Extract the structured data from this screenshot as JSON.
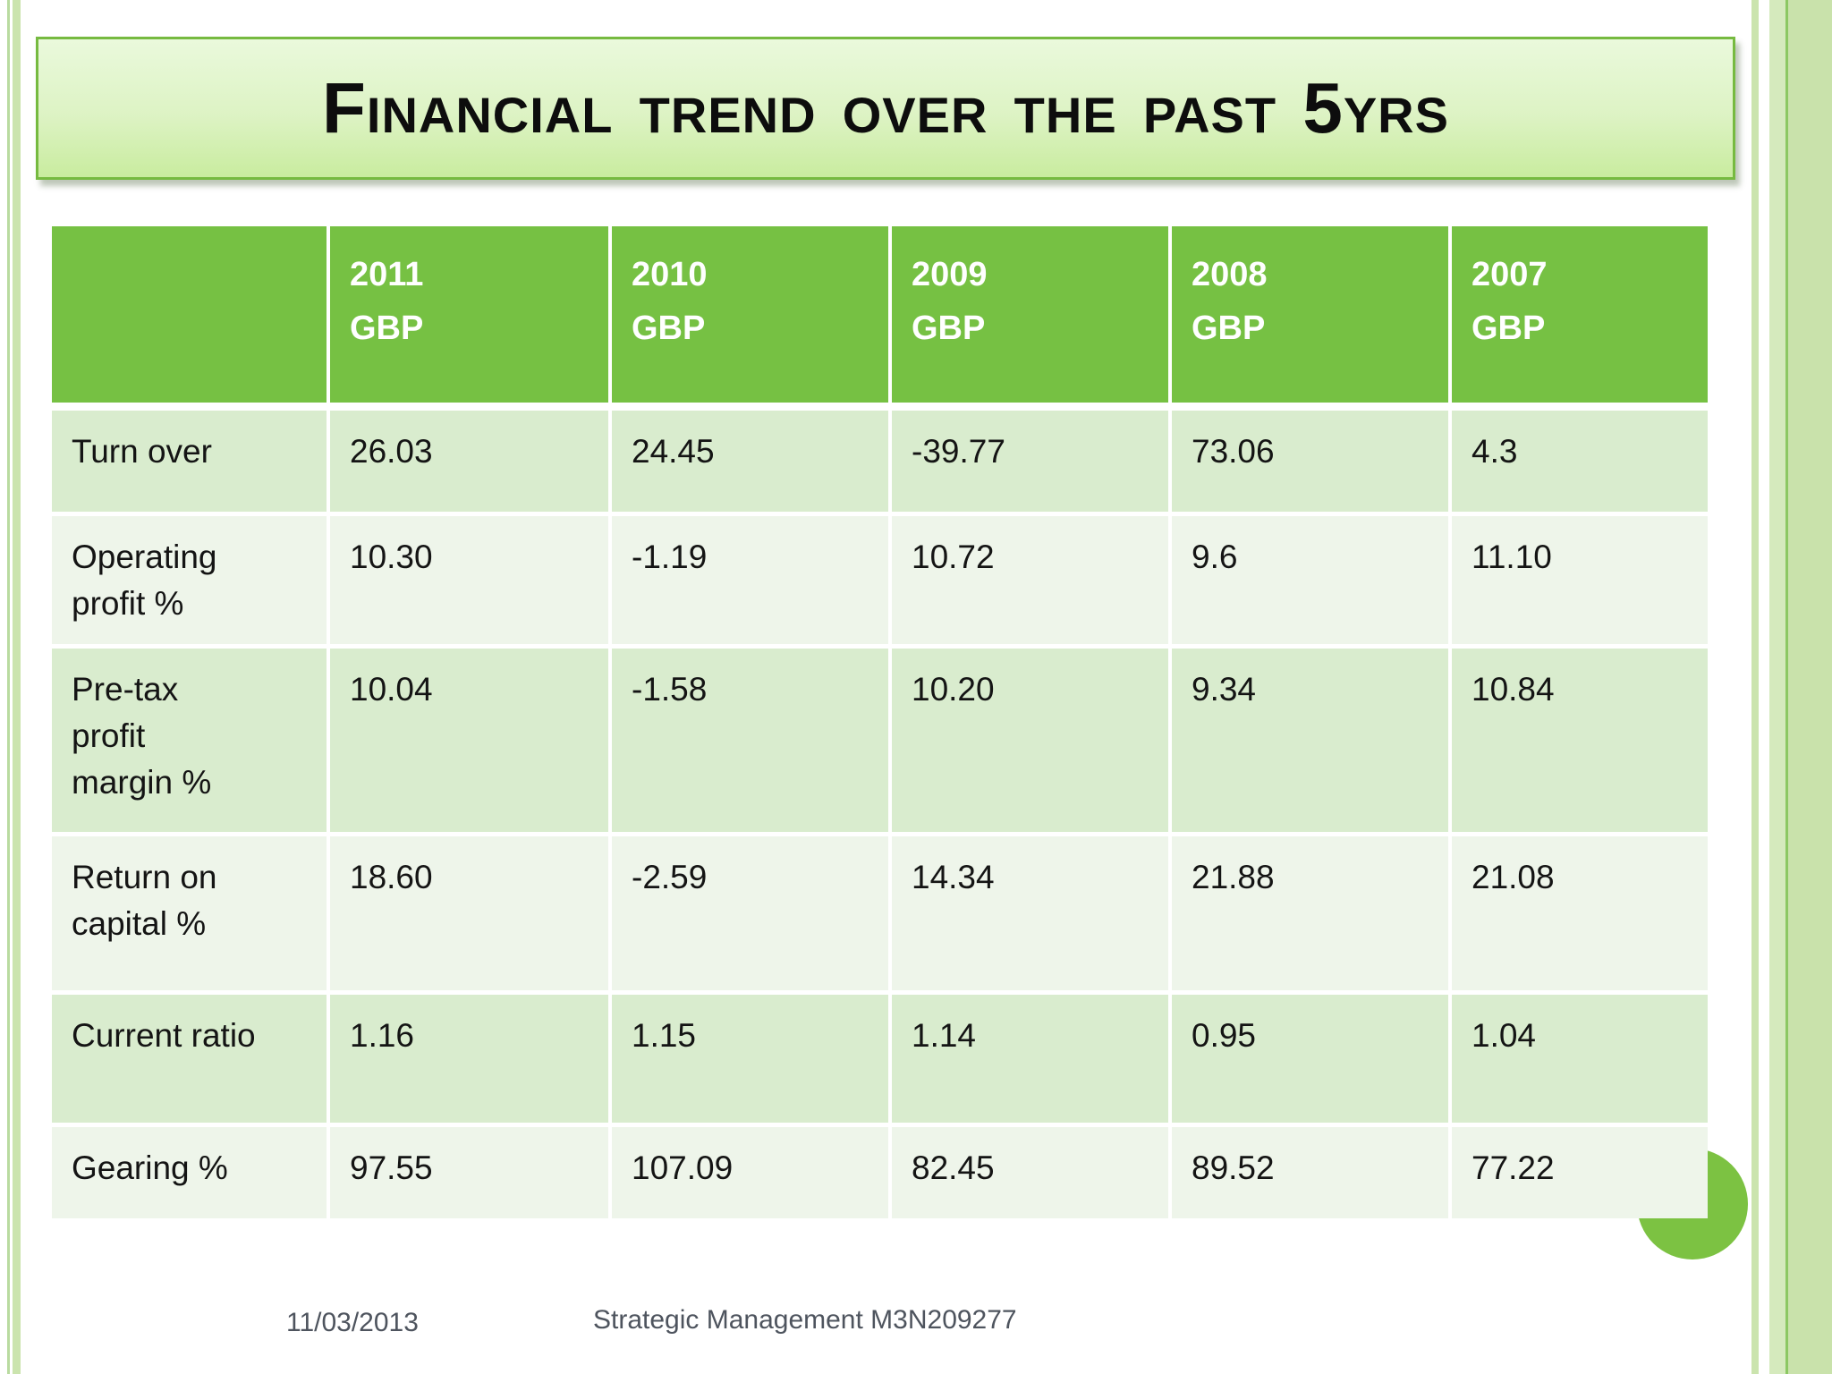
{
  "slide": {
    "title": "Financial trend over the past 5yrs",
    "footer": {
      "date": "11/03/2013",
      "course": "Strategic Management M3N209277"
    }
  },
  "table": {
    "columns": [
      {
        "year": "2011",
        "currency": "GBP"
      },
      {
        "year": "2010",
        "currency": "GBP"
      },
      {
        "year": "2009",
        "currency": "GBP"
      },
      {
        "year": "2008",
        "currency": "GBP"
      },
      {
        "year": "2007",
        "currency": "GBP"
      }
    ],
    "rows": [
      {
        "label": "Turn over",
        "values": [
          "26.03",
          "24.45",
          "-39.77",
          "73.06",
          "4.3"
        ]
      },
      {
        "label": "Operating\nprofit %",
        "values": [
          "10.30",
          "-1.19",
          "10.72",
          "9.6",
          "11.10"
        ]
      },
      {
        "label": "Pre-tax\nprofit\nmargin %",
        "values": [
          "10.04",
          "-1.58",
          "10.20",
          "9.34",
          "10.84"
        ]
      },
      {
        "label": "Return on\ncapital %",
        "values": [
          "18.60",
          "-2.59",
          "14.34",
          "21.88",
          "21.08"
        ]
      },
      {
        "label": "Current ratio",
        "values": [
          "1.16",
          "1.15",
          "1.14",
          "0.95",
          "1.04"
        ]
      },
      {
        "label": "Gearing %",
        "values": [
          "97.55",
          "107.09",
          "82.45",
          "89.52",
          "77.22"
        ]
      }
    ]
  },
  "colors": {
    "header_green": "#76c143",
    "band_dark": "#d9ecce",
    "band_light": "#eef5ea",
    "title_border": "#76ba40",
    "title_fill_top": "#eaf9dc",
    "title_fill_bottom": "#c9ec9f",
    "edge_stripe_green": "#cbe4ae",
    "edge_accent_line": "#8cc863",
    "corner_circle_green": "#7cc242",
    "footer_text_gray": "#4e545e"
  }
}
